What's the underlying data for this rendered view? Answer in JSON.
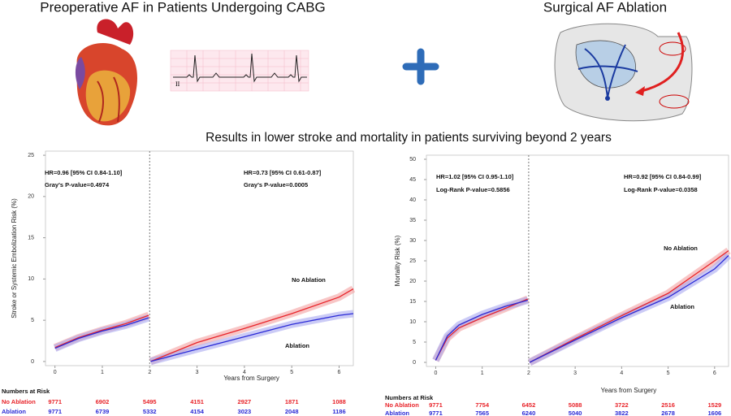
{
  "header": {
    "left_title": "Preoperative AF in Patients Undergoing CABG",
    "right_title": "Surgical AF Ablation",
    "ecg_lead": "II",
    "subtitle": "Results in lower stroke and mortality in patients surviving beyond 2 years"
  },
  "chart_data": [
    {
      "type": "line",
      "ylabel": "Stroke or Systemic Embolization Risk (%)",
      "xlabel": "Years from Surgery",
      "xlim": [
        -0.2,
        6.3
      ],
      "ylim": [
        -0.5,
        25.5
      ],
      "xticks": [
        0,
        1,
        2,
        3,
        4,
        5,
        6
      ],
      "yticks": [
        0,
        5,
        10,
        15,
        20,
        25
      ],
      "landmark": 2,
      "annotations": [
        "HR=0.96 [95% CI 0.84-1.10]",
        "Gray's P-value=0.4974",
        "HR=0.73 [95% CI 0.61-0.87]",
        "Gray's P-value=0.0005"
      ],
      "x": [
        0,
        0.5,
        1,
        1.5,
        1.98,
        2,
        2.02,
        3,
        4,
        5,
        6,
        6.3
      ],
      "series": [
        {
          "name": "No Ablation",
          "color": "#e8242a",
          "band": "#f4a0a0",
          "values": [
            1.7,
            2.9,
            3.8,
            4.6,
            5.6,
            null,
            0,
            2.3,
            4.0,
            5.8,
            7.8,
            8.8
          ]
        },
        {
          "name": "Ablation",
          "color": "#2a2ad6",
          "band": "#a8a8f0",
          "values": [
            1.6,
            2.8,
            3.7,
            4.4,
            5.3,
            null,
            0,
            1.5,
            3.0,
            4.5,
            5.6,
            5.8
          ]
        }
      ],
      "risk_table": {
        "title": "Numbers at Risk",
        "rows": [
          {
            "values": [
              9771,
              6902,
              5495,
              4151,
              2927,
              1871,
              1088
            ]
          },
          {
            "values": [
              9771,
              6739,
              5332,
              4154,
              3023,
              2048,
              1186
            ]
          }
        ]
      }
    },
    {
      "type": "line",
      "ylabel": "Mortality Risk (%)",
      "xlabel": "Years from Surgery",
      "xlim": [
        -0.2,
        6.3
      ],
      "ylim": [
        -1,
        51
      ],
      "xticks": [
        0,
        1,
        2,
        3,
        4,
        5,
        6
      ],
      "yticks": [
        0,
        5,
        10,
        15,
        20,
        25,
        30,
        35,
        40,
        45,
        50
      ],
      "landmark": 2,
      "annotations": [
        "HR=1.02 [95% CI 0.95-1.10]",
        "Log-Rank P-value=0.5856",
        "HR=0.92 [95% CI 0.84-0.99]",
        "Log-Rank P-value=0.0358"
      ],
      "x": [
        0,
        0.25,
        0.5,
        1,
        1.5,
        1.98,
        2,
        2.02,
        3,
        4,
        5,
        6,
        6.3
      ],
      "series": [
        {
          "name": "No Ablation",
          "color": "#e8242a",
          "band": "#f4a0a0",
          "values": [
            0.5,
            6,
            8.5,
            11,
            13.3,
            15.6,
            null,
            0,
            5.8,
            11.5,
            17,
            25,
            27.5
          ]
        },
        {
          "name": "Ablation",
          "color": "#2a2ad6",
          "band": "#a8a8f0",
          "values": [
            0.5,
            6.5,
            9.2,
            11.8,
            13.8,
            15.3,
            null,
            0,
            5.5,
            11,
            16,
            23,
            26.3
          ]
        }
      ],
      "risk_table": {
        "title": "Numbers at Risk",
        "rows": [
          {
            "values": [
              9771,
              7754,
              6452,
              5088,
              3722,
              2516,
              1529
            ]
          },
          {
            "values": [
              9771,
              7565,
              6240,
              5040,
              3822,
              2678,
              1606
            ]
          }
        ]
      }
    }
  ]
}
